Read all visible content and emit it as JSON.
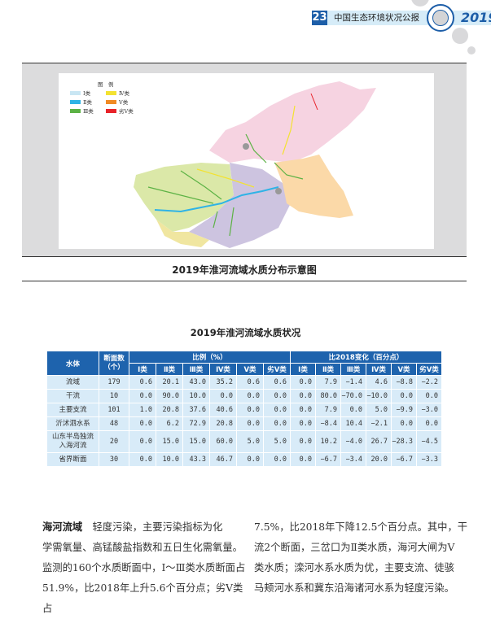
{
  "header": {
    "page_number": "23",
    "publication": "中国生态环境状况公报",
    "year": "2019",
    "accent": "#1d5ea8"
  },
  "figure": {
    "caption": "2019年淮河流域水质分布示意图",
    "legend_title": "图　例",
    "legend": [
      {
        "label": "Ⅰ类",
        "color": "#c9e6f3"
      },
      {
        "label": "Ⅳ类",
        "color": "#f3e231"
      },
      {
        "label": "Ⅱ类",
        "color": "#2fb3e6"
      },
      {
        "label": "Ⅴ类",
        "color": "#f08a24"
      },
      {
        "label": "Ⅲ类",
        "color": "#5cb245"
      },
      {
        "label": "劣Ⅴ类",
        "color": "#e8232a"
      }
    ]
  },
  "table": {
    "title": "2019年淮河流域水质状况",
    "col_water": "水体",
    "col_count": "断面数（个）",
    "group_ratio": "比例（%）",
    "group_change": "比2018变化（百分点）",
    "classes": [
      "Ⅰ类",
      "Ⅱ类",
      "Ⅲ类",
      "Ⅳ类",
      "Ⅴ类",
      "劣Ⅴ类"
    ],
    "rows": [
      {
        "name": "流域",
        "count": "179",
        "ratio": [
          "0.6",
          "20.1",
          "43.0",
          "35.2",
          "0.6",
          "0.6"
        ],
        "change": [
          "0.0",
          "7.9",
          "−1.4",
          "4.6",
          "−8.8",
          "−2.2"
        ]
      },
      {
        "name": "干流",
        "count": "10",
        "ratio": [
          "0.0",
          "90.0",
          "10.0",
          "0.0",
          "0.0",
          "0.0"
        ],
        "change": [
          "0.0",
          "80.0",
          "−70.0",
          "−10.0",
          "0.0",
          "0.0"
        ]
      },
      {
        "name": "主要支流",
        "count": "101",
        "ratio": [
          "1.0",
          "20.8",
          "37.6",
          "40.6",
          "0.0",
          "0.0"
        ],
        "change": [
          "0.0",
          "7.9",
          "0.0",
          "5.0",
          "−9.9",
          "−3.0"
        ]
      },
      {
        "name": "沂沭泗水系",
        "count": "48",
        "ratio": [
          "0.0",
          "6.2",
          "72.9",
          "20.8",
          "0.0",
          "0.0"
        ],
        "change": [
          "0.0",
          "−8.4",
          "10.4",
          "−2.1",
          "0.0",
          "0.0"
        ]
      },
      {
        "name": "山东半岛独流入海河流",
        "count": "20",
        "ratio": [
          "0.0",
          "15.0",
          "15.0",
          "60.0",
          "5.0",
          "5.0"
        ],
        "change": [
          "0.0",
          "10.2",
          "−4.0",
          "26.7",
          "−28.3",
          "−4.5"
        ]
      },
      {
        "name": "省界断面",
        "count": "30",
        "ratio": [
          "0.0",
          "10.0",
          "43.3",
          "46.7",
          "0.0",
          "0.0"
        ],
        "change": [
          "0.0",
          "−6.7",
          "−3.4",
          "20.0",
          "−6.7",
          "−3.3"
        ]
      }
    ]
  },
  "body": {
    "left_heading": "海河流域",
    "left_lines": [
      "　轻度污染，主要污染指标为化",
      "学需氧量、高锰酸盐指数和五日生化需氧量。",
      "监测的160个水质断面中，Ⅰ～Ⅲ类水质断面占",
      "51.9%，比2018年上升5.6个百分点；劣Ⅴ类占"
    ],
    "right_lines": [
      "7.5%，比2018年下降12.5个百分点。其中，干",
      "流2个断面，三岔口为Ⅱ类水质，海河大闸为Ⅴ",
      "类水质；滦河水系水质为优，主要支流、徒骇",
      "马颊河水系和冀东沿海诸河水系为轻度污染。"
    ]
  }
}
